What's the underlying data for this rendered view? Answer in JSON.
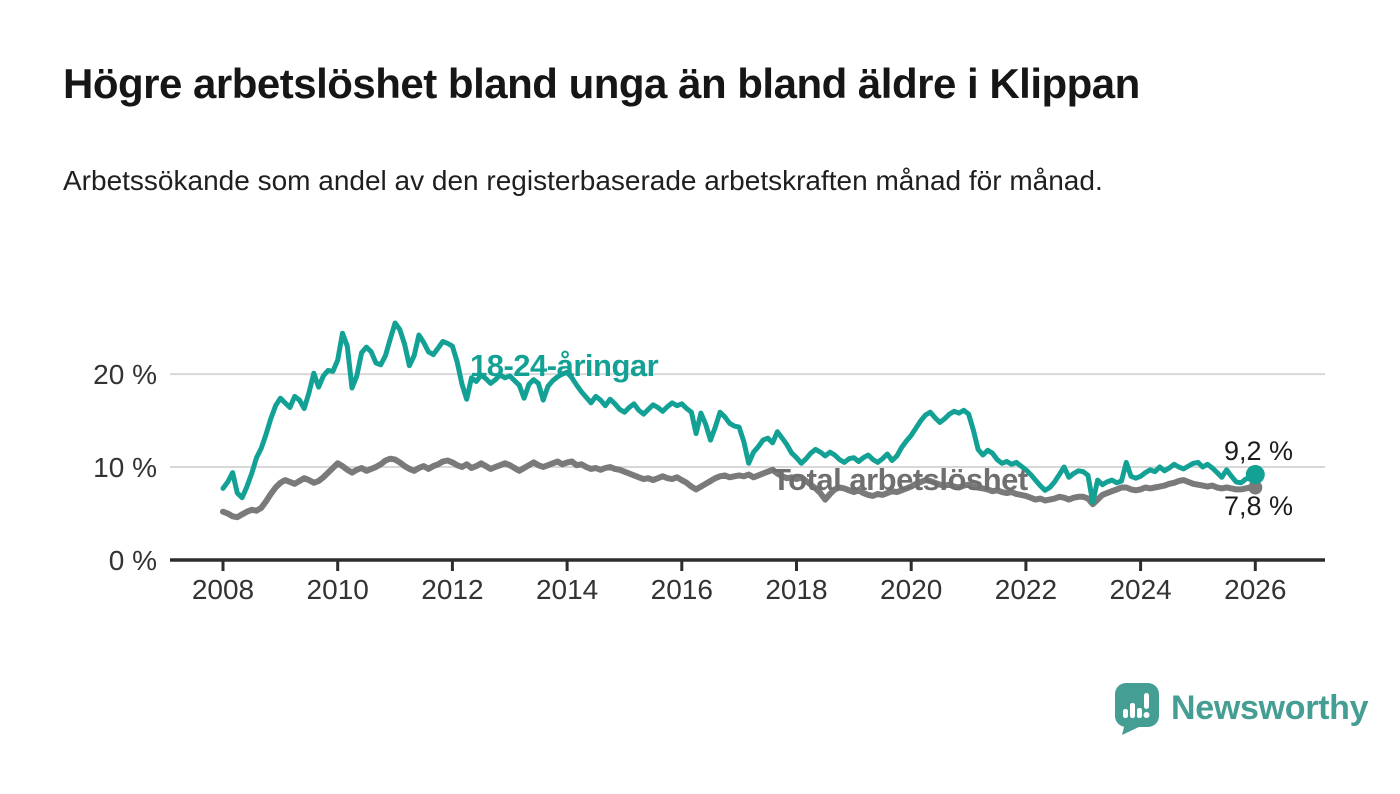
{
  "header": {
    "title": "Högre arbetslöshet bland unga än bland äldre i Klippan",
    "subtitle": "Arbetssökande som andel av den registerbaserade arbetskraften månad för månad."
  },
  "chart_data": {
    "type": "line",
    "title": "Högre arbetslöshet bland unga än bland äldre i Klippan",
    "subtitle": "Arbetssökande som andel av den registerbaserade arbetskraften månad för månad.",
    "unit": "%",
    "x_start_year": 2008,
    "x_interval": "monthly",
    "x_end": "2026-01",
    "xlim": [
      2008,
      2026.1
    ],
    "ylim": [
      0,
      27
    ],
    "grid": "horizontal",
    "legend_position": "inline-labels",
    "x_ticks": [
      2008,
      2010,
      2012,
      2014,
      2016,
      2018,
      2020,
      2022,
      2024,
      2026
    ],
    "y_ticks": [
      {
        "label": "0 %",
        "value": 0
      },
      {
        "label": "10 %",
        "value": 10
      },
      {
        "label": "20 %",
        "value": 20
      }
    ],
    "colors": {
      "youth": "#13a195",
      "total": "#7a7a7a",
      "grid": "#d8d8d8",
      "axis": "#2d2d2d",
      "tick_text": "#333333"
    },
    "series": [
      {
        "name": "18-24-åringar",
        "color": "#13a195",
        "end_label": "9,2 %",
        "end_value": 9.2,
        "values": [
          7.7,
          8.4,
          9.4,
          7.2,
          6.7,
          7.9,
          9.3,
          11.0,
          12.0,
          13.5,
          15.2,
          16.6,
          17.4,
          16.9,
          16.4,
          17.6,
          17.2,
          16.3,
          18.0,
          20.1,
          18.6,
          19.8,
          20.4,
          20.3,
          21.5,
          24.4,
          23.0,
          18.5,
          19.8,
          22.3,
          22.9,
          22.4,
          21.2,
          21.0,
          22.0,
          23.8,
          25.5,
          24.8,
          23.2,
          20.9,
          22.0,
          24.2,
          23.4,
          22.4,
          22.1,
          22.8,
          23.5,
          23.3,
          23.0,
          21.3,
          18.9,
          17.3,
          19.6,
          19.2,
          19.9,
          19.5,
          19.0,
          19.4,
          19.9,
          19.6,
          19.8,
          19.3,
          18.8,
          17.4,
          18.9,
          19.4,
          19.0,
          17.2,
          18.7,
          19.3,
          19.7,
          20.0,
          20.2,
          19.6,
          18.8,
          18.1,
          17.5,
          16.9,
          17.6,
          17.2,
          16.6,
          17.3,
          16.8,
          16.2,
          15.9,
          16.4,
          16.8,
          16.1,
          15.7,
          16.2,
          16.7,
          16.4,
          16.0,
          16.5,
          16.9,
          16.6,
          16.8,
          16.3,
          15.9,
          13.6,
          15.8,
          14.6,
          12.9,
          14.3,
          15.9,
          15.4,
          14.7,
          14.4,
          14.3,
          12.7,
          10.4,
          11.6,
          12.2,
          12.9,
          13.1,
          12.6,
          13.8,
          13.1,
          12.4,
          11.5,
          11.0,
          10.4,
          10.9,
          11.5,
          11.9,
          11.6,
          11.2,
          11.6,
          11.3,
          10.8,
          10.5,
          10.9,
          11.0,
          10.6,
          11.0,
          11.3,
          10.8,
          10.5,
          10.9,
          11.4,
          10.7,
          11.2,
          12.1,
          12.8,
          13.4,
          14.2,
          15.0,
          15.6,
          15.9,
          15.3,
          14.8,
          15.2,
          15.7,
          16.0,
          15.8,
          16.1,
          15.7,
          14.0,
          11.9,
          11.3,
          11.8,
          11.5,
          10.8,
          10.4,
          10.6,
          10.3,
          10.5,
          10.1,
          9.7,
          9.2,
          8.6,
          8.0,
          7.5,
          7.8,
          8.4,
          9.2,
          10.0,
          8.9,
          9.3,
          9.6,
          9.5,
          9.1,
          6.2,
          8.6,
          8.1,
          8.4,
          8.6,
          8.3,
          8.5,
          10.5,
          9.0,
          8.8,
          9.0,
          9.4,
          9.7,
          9.5,
          10.0,
          9.6,
          9.9,
          10.3,
          10.0,
          9.8,
          10.1,
          10.4,
          10.5,
          10.0,
          10.3,
          9.9,
          9.4,
          8.9,
          9.7,
          9.0,
          8.4,
          8.3,
          8.7,
          8.9,
          9.2
        ]
      },
      {
        "name": "Total arbetslöshet",
        "color": "#7a7a7a",
        "end_label": "7,8 %",
        "end_value": 7.8,
        "values": [
          5.2,
          5.0,
          4.7,
          4.6,
          4.9,
          5.2,
          5.4,
          5.3,
          5.6,
          6.3,
          7.1,
          7.8,
          8.3,
          8.6,
          8.4,
          8.2,
          8.5,
          8.8,
          8.6,
          8.3,
          8.5,
          8.9,
          9.4,
          9.9,
          10.4,
          10.1,
          9.7,
          9.4,
          9.7,
          9.9,
          9.6,
          9.8,
          10.0,
          10.3,
          10.7,
          10.9,
          10.8,
          10.5,
          10.1,
          9.8,
          9.6,
          9.9,
          10.1,
          9.8,
          10.1,
          10.3,
          10.6,
          10.7,
          10.5,
          10.2,
          10.0,
          10.3,
          9.9,
          10.1,
          10.4,
          10.1,
          9.8,
          10.0,
          10.2,
          10.4,
          10.2,
          9.9,
          9.6,
          9.9,
          10.2,
          10.5,
          10.2,
          10.0,
          10.2,
          10.4,
          10.6,
          10.3,
          10.5,
          10.6,
          10.2,
          10.3,
          10.0,
          9.8,
          9.9,
          9.7,
          9.9,
          10.0,
          9.8,
          9.7,
          9.5,
          9.3,
          9.1,
          8.9,
          8.7,
          8.8,
          8.6,
          8.8,
          9.0,
          8.8,
          8.7,
          8.9,
          8.6,
          8.3,
          7.9,
          7.6,
          7.9,
          8.2,
          8.5,
          8.8,
          9.0,
          9.1,
          8.9,
          9.0,
          9.1,
          9.0,
          9.2,
          8.9,
          9.1,
          9.3,
          9.5,
          9.7,
          9.3,
          9.0,
          8.8,
          8.9,
          8.7,
          8.9,
          8.5,
          8.1,
          7.7,
          7.2,
          6.5,
          7.1,
          7.6,
          7.8,
          7.7,
          7.5,
          7.3,
          7.5,
          7.2,
          7.0,
          6.9,
          7.1,
          7.0,
          7.2,
          7.4,
          7.3,
          7.5,
          7.7,
          7.9,
          8.2,
          8.4,
          8.6,
          8.5,
          8.3,
          8.1,
          8.0,
          8.1,
          7.9,
          7.8,
          8.0,
          8.1,
          7.9,
          7.8,
          7.7,
          7.6,
          7.4,
          7.5,
          7.3,
          7.2,
          7.3,
          7.1,
          7.0,
          6.9,
          6.7,
          6.5,
          6.6,
          6.4,
          6.5,
          6.6,
          6.8,
          6.7,
          6.5,
          6.7,
          6.8,
          6.8,
          6.6,
          6.0,
          6.5,
          7.0,
          7.2,
          7.4,
          7.6,
          7.8,
          7.8,
          7.6,
          7.5,
          7.6,
          7.8,
          7.7,
          7.8,
          7.9,
          8.0,
          8.2,
          8.3,
          8.5,
          8.6,
          8.4,
          8.2,
          8.1,
          8.0,
          7.9,
          8.0,
          7.8,
          7.7,
          7.8,
          7.7,
          7.6,
          7.6,
          7.7,
          7.8,
          7.8
        ]
      }
    ]
  },
  "footer": {
    "brand": "Newsworthy",
    "brand_color": "#459e94"
  }
}
